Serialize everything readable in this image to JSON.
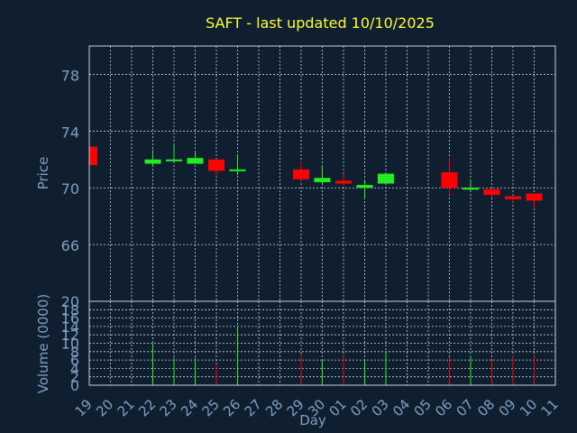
{
  "colors": {
    "background": "#0f1f30",
    "frame": "#c8d0e0",
    "grid": "#c8d0e0",
    "title": "#ffff33",
    "axis_text": "#7f9fc0",
    "up": "#22ee22",
    "down": "#ff0000"
  },
  "chart_data": {
    "type": "candlestick",
    "title": "SAFT - last updated 10/10/2025",
    "price_panel": {
      "ylabel": "Price",
      "ylim": [
        62,
        80
      ],
      "yticks": [
        66,
        70,
        74,
        78
      ],
      "grid": true
    },
    "volume_panel": {
      "ylabel": "Volume (0000)",
      "ylim": [
        0,
        20
      ],
      "yticks": [
        0,
        2,
        4,
        6,
        8,
        10,
        12,
        14,
        16,
        18,
        20
      ],
      "grid": true
    },
    "xlabel": "Day",
    "x_ticks": [
      "19",
      "20",
      "21",
      "22",
      "23",
      "24",
      "25",
      "26",
      "27",
      "28",
      "29",
      "30",
      "01",
      "02",
      "03",
      "04",
      "05",
      "06",
      "07",
      "08",
      "09",
      "10",
      "11"
    ],
    "candles": [
      {
        "day": "19",
        "open": 72.9,
        "high": 72.9,
        "low": 71.6,
        "close": 71.6,
        "volume": 0
      },
      {
        "day": "22",
        "open": 71.7,
        "high": 72.7,
        "low": 71.5,
        "close": 72.0,
        "volume": 10.0
      },
      {
        "day": "23",
        "open": 71.9,
        "high": 73.0,
        "low": 71.8,
        "close": 72.0,
        "volume": 6.5
      },
      {
        "day": "24",
        "open": 71.7,
        "high": 72.5,
        "low": 71.7,
        "close": 72.1,
        "volume": 6.5
      },
      {
        "day": "25",
        "open": 72.0,
        "high": 72.0,
        "low": 70.9,
        "close": 71.2,
        "volume": 5.0
      },
      {
        "day": "26",
        "open": 71.2,
        "high": 72.3,
        "low": 70.9,
        "close": 71.3,
        "volume": 14.0
      },
      {
        "day": "29",
        "open": 71.3,
        "high": 71.9,
        "low": 70.5,
        "close": 70.6,
        "volume": 7.5
      },
      {
        "day": "30",
        "open": 70.4,
        "high": 71.6,
        "low": 70.3,
        "close": 70.7,
        "volume": 6.0
      },
      {
        "day": "01",
        "open": 70.5,
        "high": 71.0,
        "low": 70.2,
        "close": 70.3,
        "volume": 7.0
      },
      {
        "day": "02",
        "open": 70.0,
        "high": 70.5,
        "low": 69.3,
        "close": 70.2,
        "volume": 6.0
      },
      {
        "day": "03",
        "open": 70.3,
        "high": 71.0,
        "low": 70.3,
        "close": 71.0,
        "volume": 7.5
      },
      {
        "day": "06",
        "open": 71.1,
        "high": 72.1,
        "low": 69.5,
        "close": 70.0,
        "volume": 6.5
      },
      {
        "day": "07",
        "open": 69.9,
        "high": 70.6,
        "low": 69.8,
        "close": 70.0,
        "volume": 7.0
      },
      {
        "day": "08",
        "open": 69.9,
        "high": 70.0,
        "low": 69.3,
        "close": 69.5,
        "volume": 6.0
      },
      {
        "day": "09",
        "open": 69.4,
        "high": 69.4,
        "low": 69.0,
        "close": 69.2,
        "volume": 7.0
      },
      {
        "day": "10",
        "open": 69.6,
        "high": 69.6,
        "low": 68.5,
        "close": 69.1,
        "volume": 7.0
      }
    ]
  }
}
